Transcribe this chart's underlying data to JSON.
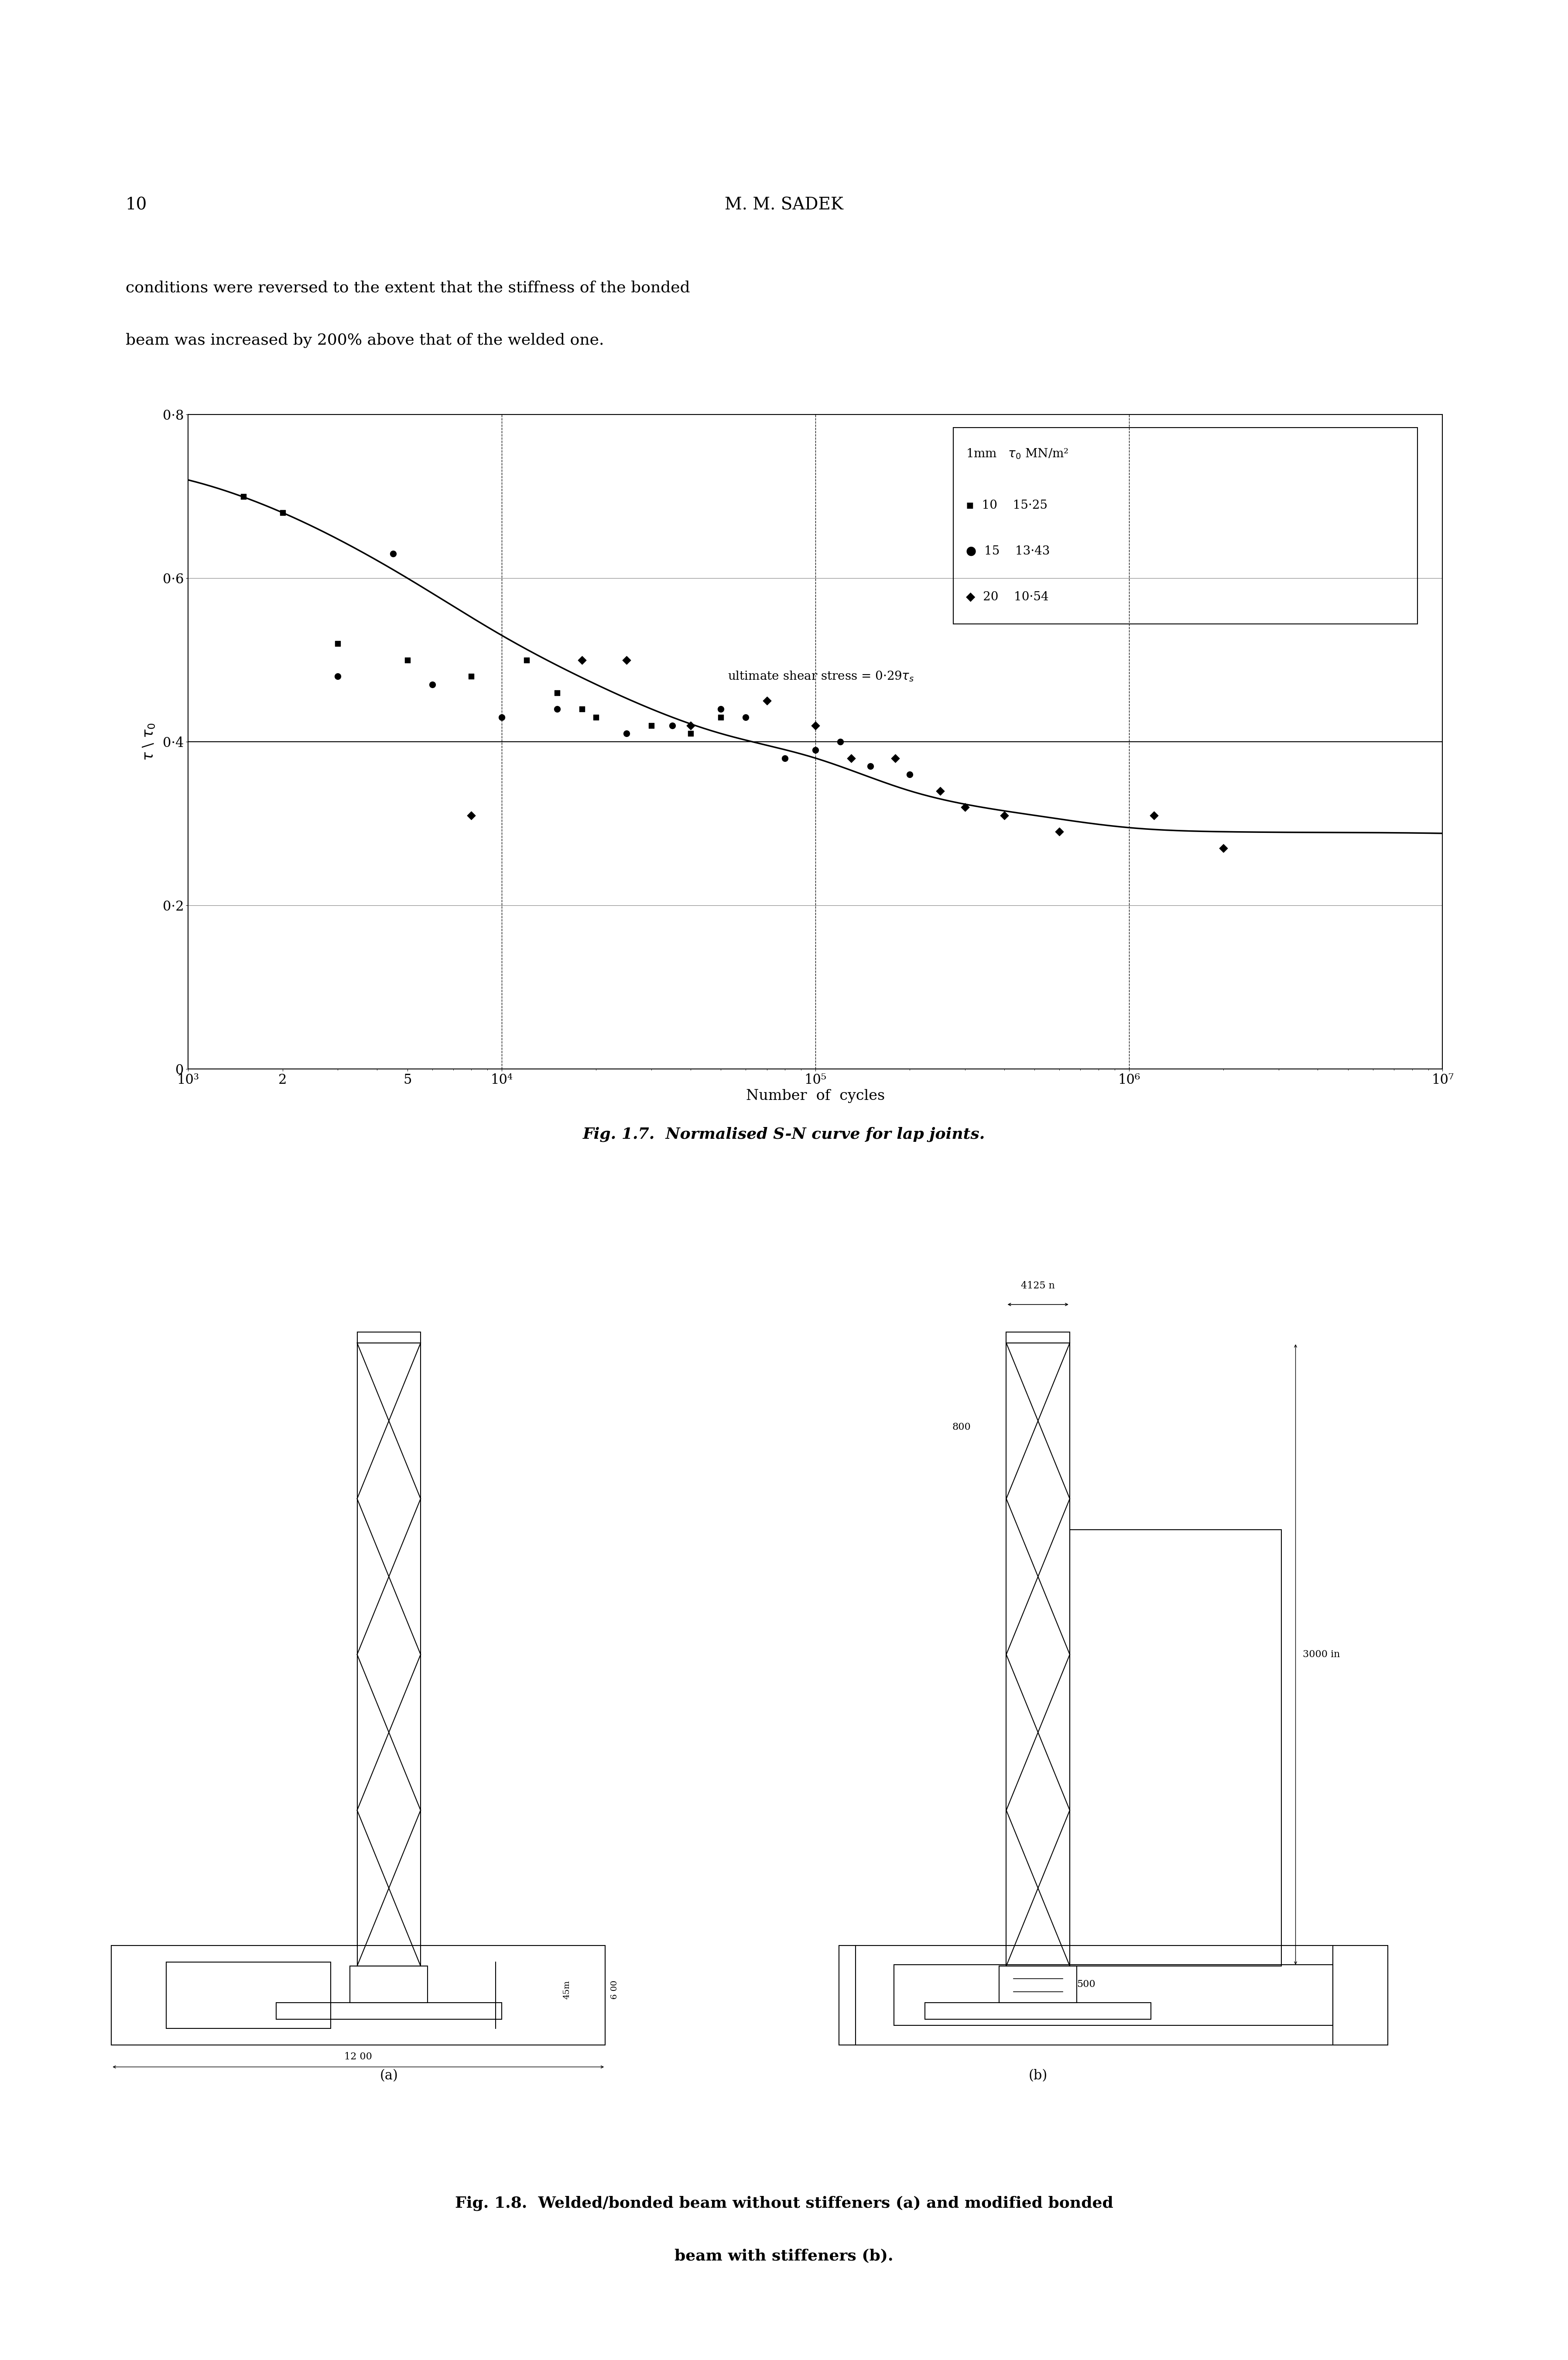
{
  "page_number": "10",
  "header": "M. M. SADEK",
  "body_text_line1": "conditions were reversed to the extent that the stiffness of the bonded",
  "body_text_line2": "beam was increased by 200% above that of the welded one.",
  "fig17_caption": "Fig. 1.7.  Normalised S-N curve for lap joints.",
  "fig18_caption_line1": "Fig. 1.8.  Welded/bonded beam without stiffeners (a) and modified bonded",
  "fig18_caption_line2": "beam with stiffeners (b).",
  "sn_scatter": {
    "x": [
      1500,
      2000,
      2500,
      3000,
      4000,
      5000,
      6000,
      8000,
      10000,
      12000,
      15000,
      20000,
      25000,
      30000,
      40000,
      50000,
      60000,
      80000,
      100000,
      120000,
      150000,
      200000,
      300000,
      500000,
      1000000,
      2000000
    ],
    "y": [
      0.7,
      0.69,
      0.63,
      0.52,
      0.49,
      0.51,
      0.47,
      0.48,
      0.43,
      0.5,
      0.45,
      0.44,
      0.42,
      0.41,
      0.42,
      0.43,
      0.38,
      0.38,
      0.4,
      0.39,
      0.37,
      0.37,
      0.34,
      0.33,
      0.31,
      0.27
    ]
  },
  "sn_scatter2": {
    "x": [
      3000,
      4500,
      8000,
      15000,
      18000,
      25000,
      35000,
      50000,
      70000,
      100000,
      130000,
      180000,
      250000,
      350000,
      500000,
      700000,
      1200000
    ],
    "y": [
      0.48,
      0.45,
      0.31,
      0.3,
      0.4,
      0.5,
      0.42,
      0.44,
      0.45,
      0.42,
      0.41,
      0.35,
      0.32,
      0.3,
      0.31,
      0.29,
      0.26
    ]
  },
  "legend_entries": [
    {
      "label": "10",
      "t0": "15·25"
    },
    {
      "label": "15",
      "t0": "13·43"
    },
    {
      "label": "20",
      "t0": "10·54"
    }
  ],
  "ultimate_shear_label": "ultimate shear stress = 0·29τs",
  "background_color": "#ffffff",
  "text_color": "#000000"
}
